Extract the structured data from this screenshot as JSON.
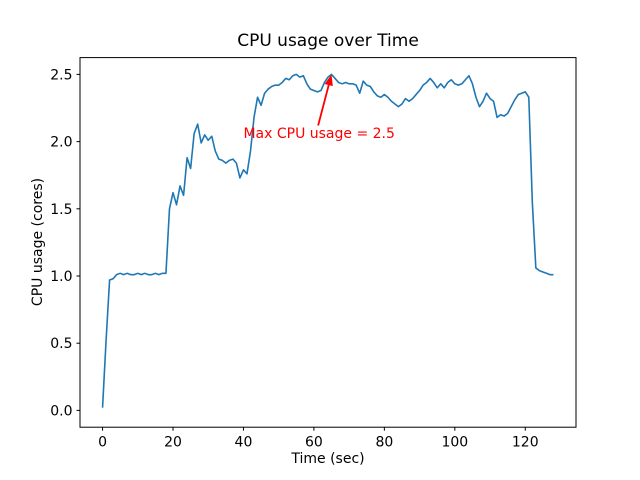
{
  "chart_data": {
    "type": "line",
    "title": "CPU usage over Time",
    "xlabel": "Time (sec)",
    "ylabel": "CPU usage (cores)",
    "line_color": "#1f77b4",
    "axis_color": "#000000",
    "background_color": "#ffffff",
    "grid": false,
    "legend": null,
    "xlim": [
      -6.4,
      134.4
    ],
    "ylim": [
      -0.125,
      2.625
    ],
    "xticks": [
      0,
      20,
      40,
      60,
      80,
      100,
      120
    ],
    "yticks": [
      0.0,
      0.5,
      1.0,
      1.5,
      2.0,
      2.5
    ],
    "ytick_labels": [
      "0.0",
      "0.5",
      "1.0",
      "1.5",
      "2.0",
      "2.5"
    ],
    "x": [
      0,
      1,
      2,
      3,
      4,
      5,
      6,
      7,
      8,
      9,
      10,
      11,
      12,
      13,
      14,
      15,
      16,
      17,
      18,
      19,
      20,
      21,
      22,
      23,
      24,
      25,
      26,
      27,
      28,
      29,
      30,
      31,
      32,
      33,
      34,
      35,
      36,
      37,
      38,
      39,
      40,
      41,
      42,
      43,
      44,
      45,
      46,
      47,
      48,
      49,
      50,
      51,
      52,
      53,
      54,
      55,
      56,
      57,
      58,
      59,
      60,
      61,
      62,
      63,
      64,
      65,
      66,
      67,
      68,
      69,
      70,
      71,
      72,
      73,
      74,
      75,
      76,
      77,
      78,
      79,
      80,
      81,
      82,
      83,
      84,
      85,
      86,
      87,
      88,
      89,
      90,
      91,
      92,
      93,
      94,
      95,
      96,
      97,
      98,
      99,
      100,
      101,
      102,
      103,
      104,
      105,
      106,
      107,
      108,
      109,
      110,
      111,
      112,
      113,
      114,
      115,
      116,
      117,
      118,
      119,
      120,
      121,
      122,
      123,
      124,
      125,
      126,
      127,
      128
    ],
    "y": [
      0.02,
      0.52,
      0.97,
      0.98,
      1.01,
      1.02,
      1.01,
      1.02,
      1.01,
      1.01,
      1.02,
      1.01,
      1.02,
      1.01,
      1.01,
      1.02,
      1.01,
      1.02,
      1.02,
      1.5,
      1.62,
      1.53,
      1.67,
      1.6,
      1.88,
      1.8,
      2.06,
      2.13,
      1.99,
      2.05,
      2.01,
      2.04,
      1.93,
      1.87,
      1.86,
      1.84,
      1.86,
      1.87,
      1.84,
      1.73,
      1.79,
      1.76,
      1.93,
      2.18,
      2.33,
      2.27,
      2.36,
      2.39,
      2.41,
      2.42,
      2.42,
      2.44,
      2.47,
      2.46,
      2.49,
      2.5,
      2.48,
      2.49,
      2.43,
      2.39,
      2.38,
      2.37,
      2.38,
      2.44,
      2.48,
      2.5,
      2.47,
      2.44,
      2.43,
      2.44,
      2.43,
      2.43,
      2.42,
      2.36,
      2.45,
      2.42,
      2.41,
      2.37,
      2.34,
      2.33,
      2.35,
      2.33,
      2.3,
      2.28,
      2.26,
      2.28,
      2.32,
      2.3,
      2.32,
      2.35,
      2.38,
      2.42,
      2.44,
      2.47,
      2.44,
      2.4,
      2.43,
      2.4,
      2.44,
      2.46,
      2.43,
      2.42,
      2.43,
      2.46,
      2.49,
      2.43,
      2.33,
      2.26,
      2.3,
      2.36,
      2.32,
      2.3,
      2.18,
      2.2,
      2.19,
      2.21,
      2.26,
      2.31,
      2.35,
      2.36,
      2.37,
      2.33,
      1.55,
      1.06,
      1.04,
      1.03,
      1.02,
      1.01,
      1.01
    ],
    "annotation": {
      "text": "Max CPU usage = 2.5",
      "color": "#ff0000",
      "xy": [
        65,
        2.5
      ],
      "xytext": [
        40,
        2.02
      ],
      "arrow_from": [
        61.2,
        2.12
      ]
    }
  }
}
